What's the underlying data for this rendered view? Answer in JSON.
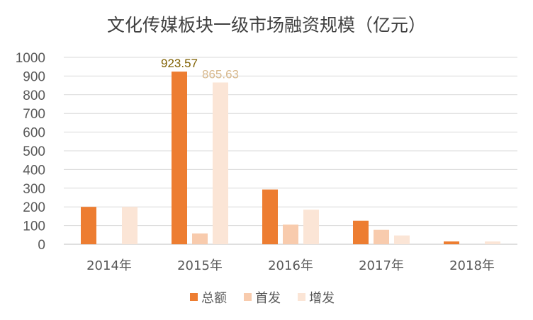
{
  "chart_data": {
    "type": "bar",
    "title": "文化传媒板块一级市场融资规模（亿元）",
    "categories": [
      "2014年",
      "2015年",
      "2016年",
      "2017年",
      "2018年"
    ],
    "series": [
      {
        "name": "总额",
        "color": "#ED7D31",
        "values": [
          200,
          923.57,
          293,
          126,
          15
        ]
      },
      {
        "name": "首发",
        "color": "#F8CBAD",
        "values": [
          0,
          58,
          105,
          77,
          0
        ]
      },
      {
        "name": "增发",
        "color": "#FBE5D6",
        "values": [
          200,
          865.63,
          185,
          47,
          15
        ]
      }
    ],
    "ylim": [
      0,
      1000
    ],
    "yticks": [
      "0",
      "100",
      "200",
      "300",
      "400",
      "500",
      "600",
      "700",
      "800",
      "900",
      "1000"
    ],
    "data_labels": [
      {
        "series": 0,
        "category": 1,
        "text": "923.57",
        "color": "#7F6000"
      },
      {
        "series": 2,
        "category": 1,
        "text": "865.63",
        "color": "#D8B98E"
      }
    ],
    "grid": true,
    "legend_position": "bottom"
  }
}
